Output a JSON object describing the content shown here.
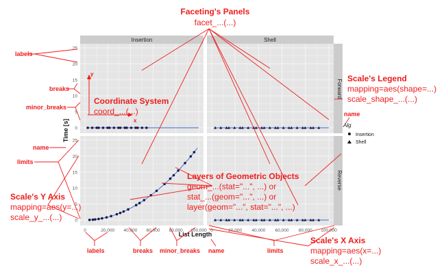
{
  "panels": {
    "col_labels": [
      "Insertion",
      "Shell"
    ],
    "row_labels": [
      "Forward",
      "Reverse"
    ]
  },
  "axes": {
    "y_title": "Time [s]",
    "x_title": "List Length",
    "y_ticks": [
      "0",
      "5",
      "10",
      "15",
      "20",
      "25"
    ],
    "x_ticks": [
      "0",
      "20,000",
      "40,000",
      "60,000",
      "80,000",
      "100,000"
    ]
  },
  "legend": {
    "title": "Alg",
    "items": [
      "Insertion",
      "Shell"
    ]
  },
  "coord_inset": {
    "x": "x",
    "y": "y"
  },
  "annotations": {
    "facet_title": "Faceting's Panels",
    "facet_code": "facet_...(...)",
    "coord_title": "Coordinate System",
    "coord_code": "coord_...(...)",
    "legend_title": "Scale's Legend",
    "legend_code1": "mapping=aes(shape=...)",
    "legend_code2": "scale_shape_...(...)",
    "geom_title": "Layers of Geometric Objects",
    "geom_code1": "geom_...(stat=\"...\", ...) or",
    "geom_code2": "stat_...(geom=\"...\", ...) or",
    "geom_code3": "layer(geom=\"...\", stat=\"...\", ...)",
    "yaxis_title": "Scale's Y Axis",
    "yaxis_code1": "mapping=aes(y=...)",
    "yaxis_code2": "scale_y_...(...)",
    "xaxis_title": "Scale's X Axis",
    "xaxis_code1": "mapping=aes(x=...)",
    "xaxis_code2": "scale_x_...(...)",
    "lbl_labels_y": "labels",
    "lbl_breaks_y": "breaks",
    "lbl_minor_y": "minor_breaks",
    "lbl_name_y": "name",
    "lbl_limits_y": "limits",
    "lbl_labels_x": "labels",
    "lbl_breaks_x": "breaks",
    "lbl_minor_x": "minor_breaks",
    "lbl_name_x": "name",
    "lbl_limits_x": "limits",
    "lbl_name_legend": "name"
  },
  "colors": {
    "annotation": "#ee1c1c",
    "panel_bg": "#e5e5e5",
    "strip_bg": "#cccccc",
    "fit_line": "#3a6fd8",
    "points": "#1a1a4a"
  }
}
